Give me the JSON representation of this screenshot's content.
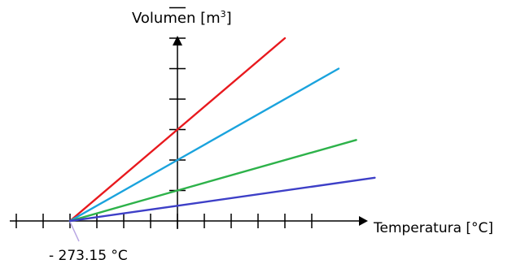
{
  "chart_data": {
    "type": "line",
    "ylabel": "Volumen [m",
    "ylabel_sup": "3",
    "ylabel_close": "]",
    "xlabel": "Temperatura [°C]",
    "annotation": "- 273.15 °C",
    "grid": false,
    "legend": "none",
    "x_ticks_count": 12,
    "y_ticks_count": 7,
    "series": [
      {
        "color": "#e8191e",
        "x": [
          -273.15,
          0,
          273.15
        ],
        "y": [
          0,
          3,
          6.0
        ]
      },
      {
        "color": "#1aa3dd",
        "x": [
          -273.15,
          0,
          409.7
        ],
        "y": [
          0,
          2,
          5.0
        ]
      },
      {
        "color": "#2db24a",
        "x": [
          -273.15,
          0,
          454.4
        ],
        "y": [
          0,
          1,
          2.66
        ]
      },
      {
        "color": "#3d3fc7",
        "x": [
          -273.15,
          0,
          501.5
        ],
        "y": [
          0,
          0.5,
          1.42
        ]
      }
    ]
  }
}
